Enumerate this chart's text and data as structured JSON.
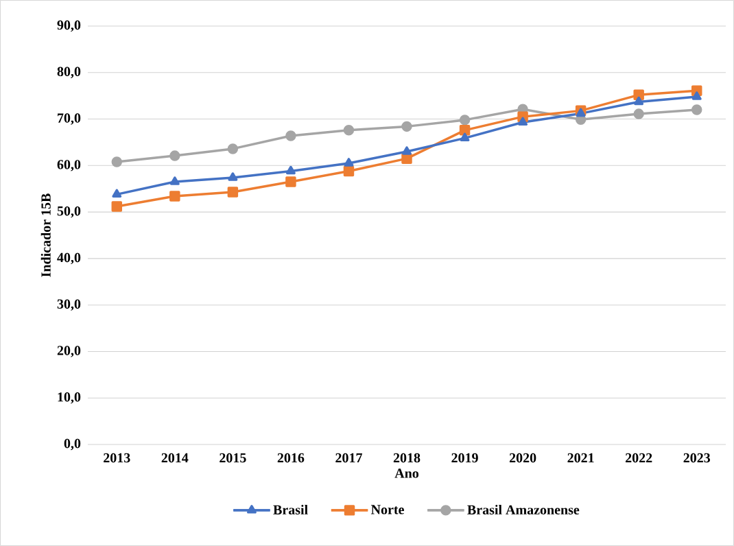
{
  "chart_data": {
    "type": "line",
    "xlabel": "Ano",
    "ylabel": "Indicador 15B",
    "categories": [
      "2013",
      "2014",
      "2015",
      "2016",
      "2017",
      "2018",
      "2019",
      "2020",
      "2021",
      "2022",
      "2023"
    ],
    "series": [
      {
        "name": "Brasil",
        "color": "#4472c4",
        "marker": "triangle",
        "values": [
          53.8,
          56.5,
          57.4,
          58.8,
          60.5,
          63.0,
          65.9,
          69.3,
          71.2,
          73.7,
          74.8
        ]
      },
      {
        "name": "Norte",
        "color": "#ed7d31",
        "marker": "square",
        "values": [
          51.2,
          53.4,
          54.3,
          56.5,
          58.8,
          61.5,
          67.6,
          70.5,
          71.8,
          75.2,
          76.1
        ]
      },
      {
        "name": "Brasil Amazonense",
        "color": "#a5a5a5",
        "marker": "circle",
        "values": [
          60.8,
          62.1,
          63.6,
          66.4,
          67.6,
          68.4,
          69.8,
          72.1,
          69.9,
          71.1,
          72.0
        ]
      }
    ],
    "ylim": [
      0,
      90
    ],
    "yticks": [
      {
        "value": 0,
        "label": "0,0"
      },
      {
        "value": 10,
        "label": "10,0"
      },
      {
        "value": 20,
        "label": "20,0"
      },
      {
        "value": 30,
        "label": "30,0"
      },
      {
        "value": 40,
        "label": "40,0"
      },
      {
        "value": 50,
        "label": "50,0"
      },
      {
        "value": 60,
        "label": "60,0"
      },
      {
        "value": 70,
        "label": "70,0"
      },
      {
        "value": 80,
        "label": "80,0"
      },
      {
        "value": 90,
        "label": "90,0"
      }
    ],
    "grid": "y",
    "legend": "bottom",
    "line_style": "solid"
  }
}
